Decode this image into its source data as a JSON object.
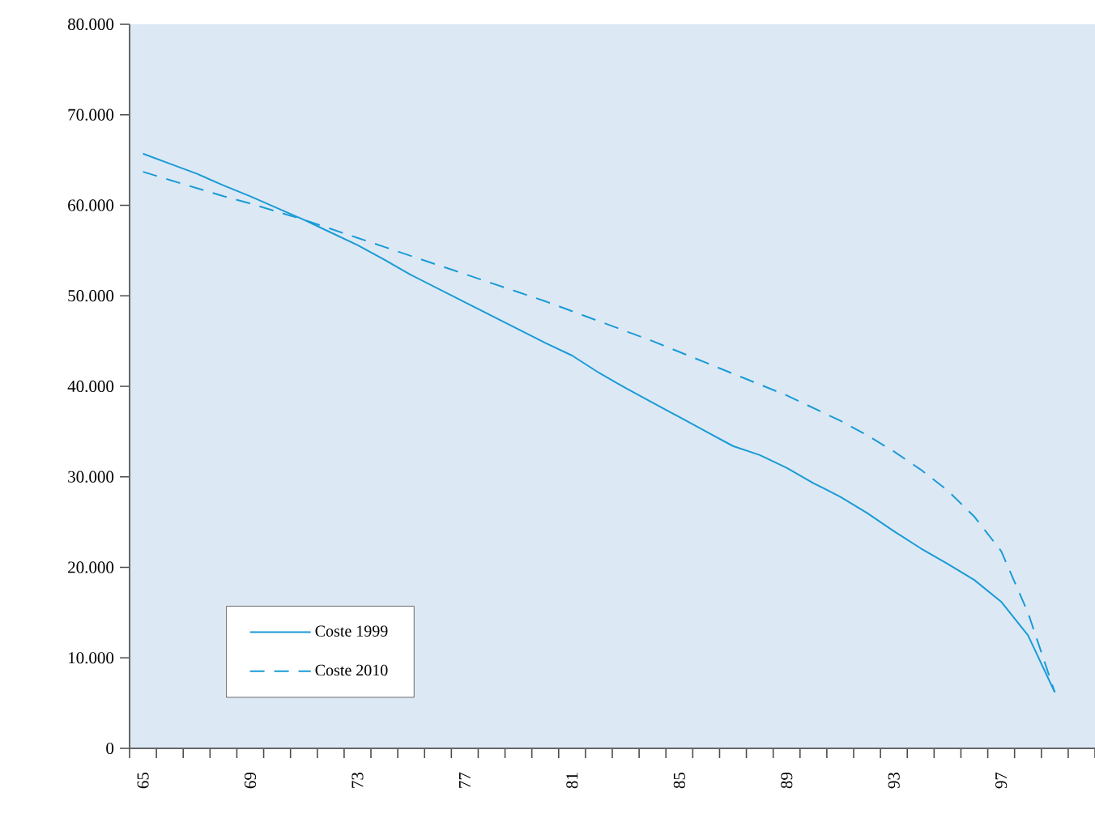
{
  "chart_data": {
    "type": "line",
    "categories": [
      "65",
      null,
      null,
      null,
      "69",
      null,
      null,
      null,
      "73",
      null,
      null,
      null,
      "77",
      null,
      null,
      null,
      "81",
      null,
      null,
      null,
      "85",
      null,
      null,
      null,
      "89",
      null,
      null,
      null,
      "93",
      null,
      null,
      null,
      "97",
      null,
      null,
      null
    ],
    "series": [
      {
        "name": "Coste 1999",
        "color": "#1a9ad6",
        "line_style": "solid",
        "values": [
          65700,
          64600,
          63500,
          62200,
          61000,
          59700,
          58400,
          57000,
          55600,
          54000,
          52300,
          50800,
          49300,
          47800,
          46300,
          44800,
          43400,
          41500,
          39800,
          38200,
          36600,
          35000,
          33400,
          32400,
          31000,
          29300,
          27800,
          26000,
          24000,
          22100,
          20400,
          18600,
          16200,
          12500,
          6200,
          null
        ]
      },
      {
        "name": "Coste 2010",
        "color": "#1a9ad6",
        "line_style": "dashed",
        "values": [
          63700,
          62800,
          61900,
          61000,
          60200,
          59300,
          58400,
          57400,
          56400,
          55400,
          54400,
          53400,
          52400,
          51400,
          50400,
          49400,
          48300,
          47200,
          46100,
          45000,
          43800,
          42600,
          41400,
          40200,
          39000,
          37600,
          36200,
          34600,
          32800,
          30800,
          28500,
          25600,
          21800,
          15000,
          6200,
          null
        ]
      }
    ],
    "ylim": [
      0,
      80000
    ],
    "yticks": [
      0,
      {
        "value": 10000,
        "label": "10.000"
      },
      {
        "value": 20000,
        "label": "20.000"
      },
      {
        "value": 30000,
        "label": "30.000"
      },
      {
        "value": 40000,
        "label": "40.000"
      },
      {
        "value": 50000,
        "label": "50.000"
      },
      {
        "value": 60000,
        "label": "60.000"
      },
      {
        "value": 70000,
        "label": "70.000"
      },
      {
        "value": 80000,
        "label": "80.000"
      }
    ],
    "legend": "bottom left"
  }
}
